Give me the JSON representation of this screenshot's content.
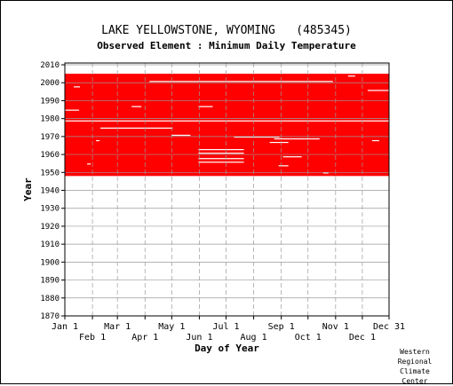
{
  "chart_data": {
    "type": "heatmap",
    "title": "LAKE YELLOWSTONE, WYOMING   (485345)",
    "subtitle": "Observed Element : Minimum Daily Temperature",
    "xlabel": "Day of Year",
    "ylabel": "Year",
    "x_ticks_upper": [
      "Jan 1",
      "Mar 1",
      "May 1",
      "Jul 1",
      "Sep 1",
      "Nov 1",
      "Dec 31"
    ],
    "x_ticks_lower": [
      "Feb 1",
      "Apr 1",
      "Jun 1",
      "Aug 1",
      "Oct 1",
      "Dec 1"
    ],
    "y_ticks": [
      "1870",
      "1880",
      "1890",
      "1900",
      "1910",
      "1920",
      "1930",
      "1940",
      "1950",
      "1960",
      "1970",
      "1980",
      "1990",
      "2000",
      "2010"
    ],
    "ylim": [
      1870,
      2011
    ],
    "grid": true,
    "data_color": "#ff0000",
    "coverage": {
      "start_year": 1948,
      "end_year": 2004,
      "description": "Daily observations present for nearly all days from 1948 to 2004, with scattered missing days (white gaps)."
    },
    "missing_segments": [
      {
        "year": 1997,
        "day_start": 10,
        "day_end": 16
      },
      {
        "year": 1984,
        "day_start": 0,
        "day_end": 15
      },
      {
        "year": 1978,
        "day_start": 0,
        "day_end": 364
      },
      {
        "year": 1974,
        "day_start": 40,
        "day_end": 120
      },
      {
        "year": 1967,
        "day_start": 35,
        "day_end": 38
      },
      {
        "year": 1954,
        "day_start": 25,
        "day_end": 28
      },
      {
        "year": 2000,
        "day_start": 95,
        "day_end": 300
      },
      {
        "year": 1986,
        "day_start": 75,
        "day_end": 85
      },
      {
        "year": 1986,
        "day_start": 150,
        "day_end": 165
      },
      {
        "year": 1970,
        "day_start": 120,
        "day_end": 140
      },
      {
        "year": 1969,
        "day_start": 190,
        "day_end": 240
      },
      {
        "year": 1968,
        "day_start": 235,
        "day_end": 285
      },
      {
        "year": 1966,
        "day_start": 230,
        "day_end": 250
      },
      {
        "year": 1958,
        "day_start": 245,
        "day_end": 265
      },
      {
        "year": 1953,
        "day_start": 240,
        "day_end": 250
      },
      {
        "year": 1995,
        "day_start": 340,
        "day_end": 364
      },
      {
        "year": 2003,
        "day_start": 318,
        "day_end": 325
      },
      {
        "year": 1949,
        "day_start": 290,
        "day_end": 295
      },
      {
        "year": 1967,
        "day_start": 345,
        "day_end": 352
      },
      {
        "year": 1962,
        "day_start": 150,
        "day_end": 200
      },
      {
        "year": 1960,
        "day_start": 150,
        "day_end": 200
      },
      {
        "year": 1957,
        "day_start": 150,
        "day_end": 200
      },
      {
        "year": 1955,
        "day_start": 150,
        "day_end": 200
      }
    ]
  },
  "credit": {
    "line1": "Western",
    "line2": "Regional",
    "line3": "Climate",
    "line4": "Center"
  }
}
